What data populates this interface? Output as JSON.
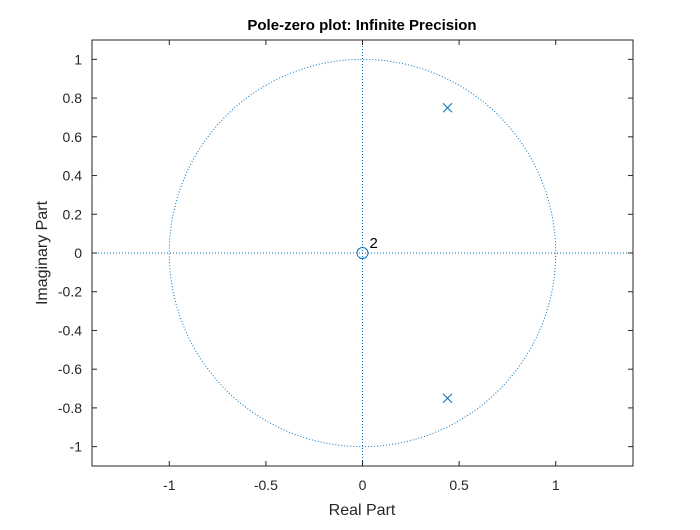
{
  "chart_data": {
    "type": "scatter",
    "title": "Pole-zero plot: Infinite Precision",
    "xlabel": "Real Part",
    "ylabel": "Imaginary Part",
    "xlim": [
      -1.4,
      1.4
    ],
    "ylim": [
      -1.1,
      1.1
    ],
    "x_ticks": [
      -1,
      -0.5,
      0,
      0.5,
      1
    ],
    "x_tick_labels": [
      "-1",
      "-0.5",
      "0",
      "0.5",
      "1"
    ],
    "y_ticks": [
      1,
      0.8,
      0.6,
      0.4,
      0.2,
      0,
      -0.2,
      -0.4,
      -0.6,
      -0.8,
      -1
    ],
    "y_tick_labels": [
      "1",
      "0.8",
      "0.6",
      "0.4",
      "0.2",
      "0",
      "-0.2",
      "-0.4",
      "-0.6",
      "-0.8",
      "-1"
    ],
    "grid": false,
    "unit_circle": true,
    "zeros": [
      {
        "real": 0,
        "imag": 0,
        "multiplicity_label": "2"
      }
    ],
    "poles": [
      {
        "real": 0.44,
        "imag": 0.75
      },
      {
        "real": 0.44,
        "imag": -0.75
      }
    ],
    "colors": {
      "markers": "#0072bd",
      "reference_lines": "#0072bd",
      "axes": "#262626"
    }
  }
}
